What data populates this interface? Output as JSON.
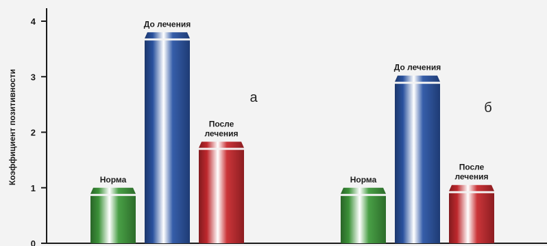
{
  "chart_data": {
    "type": "bar",
    "ylabel": "Коэффициент позитивности",
    "ylim": [
      0,
      4.25
    ],
    "yticks": [
      "0",
      "1",
      "2",
      "3",
      "4"
    ],
    "grid": false,
    "colors": {
      "green": "#3f9a3c",
      "blue": "#2b55a6",
      "red": "#c82a2f"
    },
    "groups": [
      {
        "letter": "а",
        "bars": [
          {
            "label": [
              "Норма"
            ],
            "value": 1.0,
            "color": "green"
          },
          {
            "label": [
              "До лечения"
            ],
            "value": 3.8,
            "color": "blue"
          },
          {
            "label": [
              "После",
              "лечения"
            ],
            "value": 1.83,
            "color": "red"
          }
        ]
      },
      {
        "letter": "б",
        "bars": [
          {
            "label": [
              "Норма"
            ],
            "value": 1.0,
            "color": "green"
          },
          {
            "label": [
              "До лечения"
            ],
            "value": 3.02,
            "color": "blue"
          },
          {
            "label": [
              "После",
              "лечения"
            ],
            "value": 1.05,
            "color": "red"
          }
        ]
      }
    ]
  }
}
